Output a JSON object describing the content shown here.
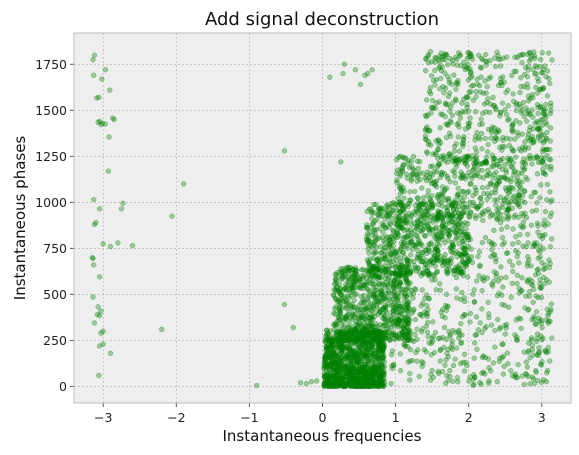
{
  "chart_data": {
    "type": "scatter",
    "title": "Add signal deconstruction",
    "xlabel": "Instantaneous frequencies",
    "ylabel": "Instantaneous phases",
    "xlim": [
      -3.4,
      3.4
    ],
    "ylim": [
      -90,
      1920
    ],
    "xticks": [
      -3,
      -2,
      -1,
      0,
      1,
      2,
      3
    ],
    "yticks": [
      0,
      250,
      500,
      750,
      1000,
      1250,
      1500,
      1750
    ],
    "grid": true,
    "marker_color": "#008000",
    "marker_alpha": 0.35,
    "style": "bmh",
    "points": [
      [
        -3.12,
        1800
      ],
      [
        -3.14,
        1775
      ],
      [
        -2.97,
        1720
      ],
      [
        -3.02,
        1670
      ],
      [
        -3.13,
        1690
      ],
      [
        -3.09,
        1567
      ],
      [
        -2.91,
        1610
      ],
      [
        -3.06,
        1570
      ],
      [
        -3.05,
        1440
      ],
      [
        -3.03,
        1422
      ],
      [
        -3.01,
        1430
      ],
      [
        -2.97,
        1425
      ],
      [
        -2.87,
        1457
      ],
      [
        -2.85,
        1450
      ],
      [
        -3.07,
        1435
      ],
      [
        -2.92,
        1355
      ],
      [
        -3.13,
        1015
      ],
      [
        -2.93,
        1170
      ],
      [
        -3.05,
        965
      ],
      [
        -2.73,
        995
      ],
      [
        -2.75,
        965
      ],
      [
        -3.1,
        890
      ],
      [
        -3.12,
        880
      ],
      [
        -3.0,
        775
      ],
      [
        -2.9,
        760
      ],
      [
        -2.8,
        780
      ],
      [
        -2.6,
        765
      ],
      [
        -3.15,
        700
      ],
      [
        -3.14,
        695
      ],
      [
        -3.13,
        660
      ],
      [
        -3.05,
        595
      ],
      [
        -3.14,
        485
      ],
      [
        -3.07,
        432
      ],
      [
        -3.03,
        410
      ],
      [
        -3.08,
        390
      ],
      [
        -3.05,
        385
      ],
      [
        -3.12,
        345
      ],
      [
        -3.0,
        300
      ],
      [
        -3.03,
        290
      ],
      [
        -3.05,
        220
      ],
      [
        -3.0,
        230
      ],
      [
        -2.9,
        180
      ],
      [
        -3.06,
        60
      ],
      [
        -2.06,
        925
      ],
      [
        -1.9,
        1100
      ],
      [
        -2.2,
        310
      ],
      [
        -0.52,
        1280
      ],
      [
        -0.9,
        5
      ],
      [
        -0.52,
        445
      ],
      [
        -0.4,
        320
      ],
      [
        -0.3,
        20
      ],
      [
        -0.22,
        15
      ],
      [
        -0.15,
        25
      ],
      [
        -0.08,
        30
      ],
      [
        0.1,
        1680
      ],
      [
        0.28,
        1700
      ],
      [
        0.3,
        1750
      ],
      [
        0.45,
        1720
      ],
      [
        0.58,
        1690
      ],
      [
        0.62,
        1700
      ],
      [
        0.25,
        1220
      ],
      [
        0.52,
        1640
      ],
      [
        0.68,
        1720
      ]
    ]
  }
}
